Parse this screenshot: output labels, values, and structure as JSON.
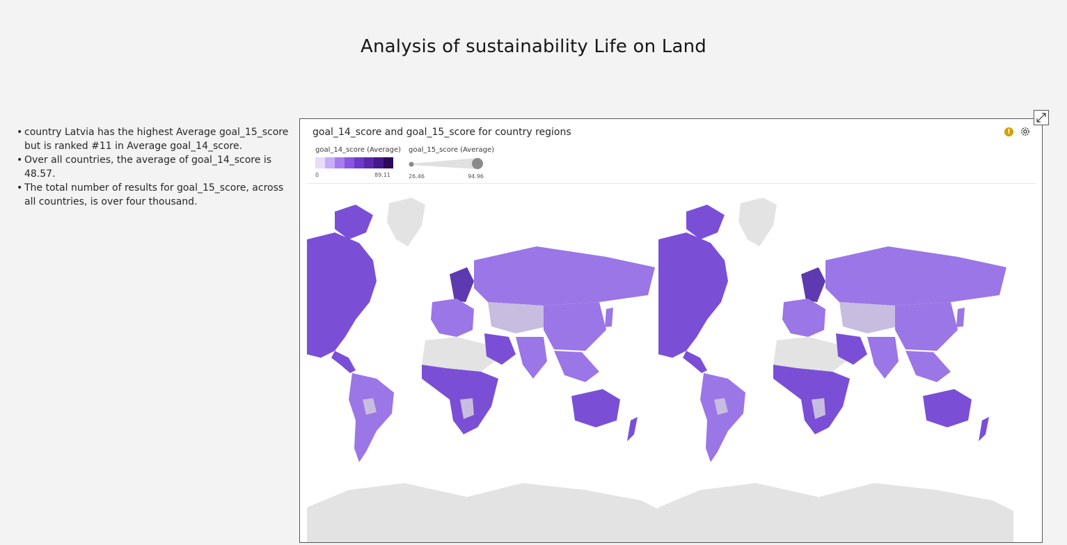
{
  "page": {
    "title": "Analysis of sustainability Life on Land"
  },
  "insights": [
    "country Latvia has the highest Average goal_15_score but is ranked #11 in Average goal_14_score.",
    "Over all countries, the average of goal_14_score is 48.57.",
    "The total number of results for goal_15_score, across all countries, is over four thousand."
  ],
  "visualization": {
    "title": "goal_14_score and goal_15_score for country regions",
    "warning_icon": "warning-icon",
    "settings_icon": "gear-icon",
    "expand_icon": "expand-icon",
    "legend_color": {
      "title": "goal_14_score (Average)",
      "min": "0",
      "max": "89.11",
      "ramp": [
        "#e8dcfb",
        "#c7aef6",
        "#a77ef0",
        "#8856e0",
        "#6f39c8",
        "#5a27ab",
        "#44178a",
        "#2c0b58"
      ]
    },
    "legend_size": {
      "title": "goal_15_score (Average)",
      "min": "26.46",
      "max": "94.96"
    },
    "map": {
      "type": "choropleth-world",
      "projection": "mercator, world repeated twice",
      "no_data_color": "#e3e3e3",
      "low_color": "#c8bde0",
      "mid_color": "#9b76e6",
      "high_color": "#7a4fd6",
      "dark_color": "#5d3ab0"
    }
  }
}
